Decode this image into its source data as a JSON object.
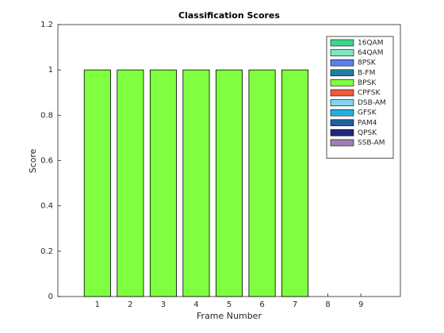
{
  "chart_data": {
    "type": "bar",
    "stacked": true,
    "title": "Classification Scores",
    "xlabel": "Frame Number",
    "ylabel": "Score",
    "x": [
      1,
      2,
      3,
      4,
      5,
      6,
      7,
      8,
      9
    ],
    "xlim": [
      -0.2,
      10.2
    ],
    "xticks": [
      1,
      2,
      3,
      4,
      5,
      6,
      7,
      8,
      9
    ],
    "ylim": [
      0,
      1.2
    ],
    "yticks": [
      0,
      0.2,
      0.4,
      0.6,
      0.8,
      1,
      1.2
    ],
    "legend_position": "upper-right",
    "series": [
      {
        "name": "16QAM",
        "color": "#3dd68c",
        "values": [
          0,
          0,
          0,
          0,
          0,
          0,
          0,
          0,
          0
        ]
      },
      {
        "name": "64QAM",
        "color": "#7fe6c2",
        "values": [
          0,
          0,
          0,
          0,
          0,
          0,
          0,
          0,
          0
        ]
      },
      {
        "name": "8PSK",
        "color": "#5b7fe8",
        "values": [
          0,
          0,
          0,
          0,
          0,
          0,
          0,
          0,
          0
        ]
      },
      {
        "name": "B-FM",
        "color": "#1f7fa0",
        "values": [
          0,
          0,
          0,
          0,
          0,
          0,
          0,
          0,
          0
        ]
      },
      {
        "name": "BPSK",
        "color": "#80ff40",
        "values": [
          1,
          1,
          1,
          1,
          1,
          1,
          1,
          0,
          0
        ]
      },
      {
        "name": "CPFSK",
        "color": "#f05a3a",
        "values": [
          0,
          0,
          0,
          0,
          0,
          0,
          0,
          0,
          0
        ]
      },
      {
        "name": "DSB-AM",
        "color": "#80d4f0",
        "values": [
          0,
          0,
          0,
          0,
          0,
          0,
          0,
          0,
          0
        ]
      },
      {
        "name": "GFSK",
        "color": "#20b0e0",
        "values": [
          0,
          0,
          0,
          0,
          0,
          0,
          0,
          0,
          0
        ]
      },
      {
        "name": "PAM4",
        "color": "#2060a0",
        "values": [
          0,
          0,
          0,
          0,
          0,
          0,
          0,
          0,
          0
        ]
      },
      {
        "name": "QPSK",
        "color": "#202880",
        "values": [
          0,
          0,
          0,
          0,
          0,
          0,
          0,
          0,
          0
        ]
      },
      {
        "name": "SSB-AM",
        "color": "#a080b0",
        "values": [
          0,
          0,
          0,
          0,
          0,
          0,
          0,
          0,
          0
        ]
      }
    ]
  }
}
